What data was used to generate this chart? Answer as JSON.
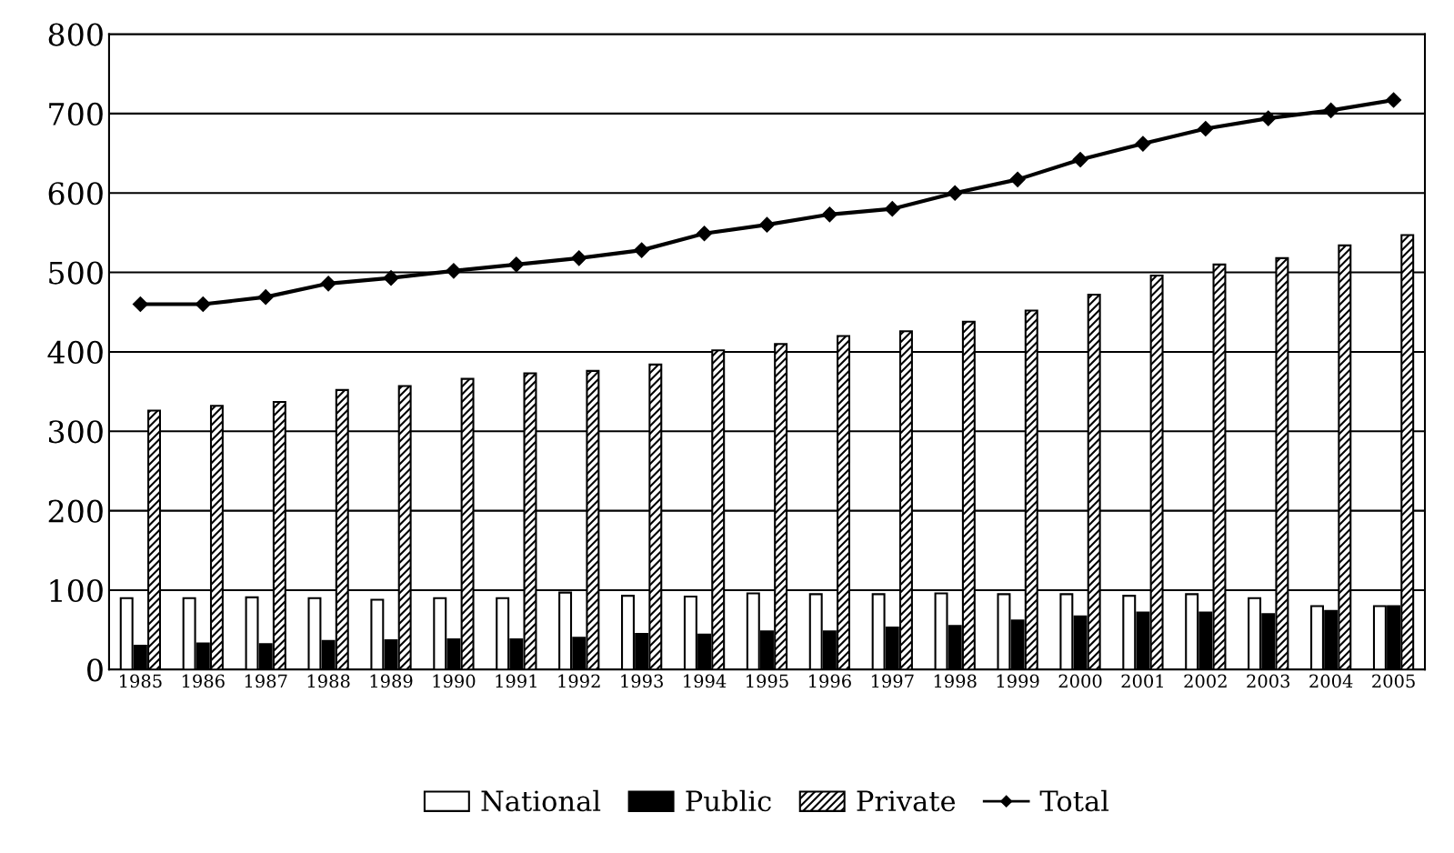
{
  "chart_data": {
    "type": "bar",
    "categories": [
      "1985",
      "1986",
      "1987",
      "1988",
      "1989",
      "1990",
      "1991",
      "1992",
      "1993",
      "1994",
      "1995",
      "1996",
      "1997",
      "1998",
      "1999",
      "2000",
      "2001",
      "2002",
      "2003",
      "2004",
      "2005"
    ],
    "series": [
      {
        "name": "National",
        "color": "#ffffff",
        "values": [
          90,
          90,
          91,
          90,
          88,
          90,
          90,
          97,
          93,
          92,
          96,
          95,
          95,
          96,
          95,
          95,
          93,
          95,
          90,
          80,
          80
        ]
      },
      {
        "name": "Public",
        "color": "#000000",
        "values": [
          30,
          33,
          32,
          36,
          37,
          38,
          38,
          40,
          45,
          44,
          48,
          48,
          53,
          55,
          62,
          67,
          72,
          72,
          70,
          74,
          80
        ]
      },
      {
        "name": "Private",
        "color": "#000000",
        "values": [
          326,
          332,
          337,
          352,
          357,
          366,
          373,
          376,
          384,
          402,
          410,
          420,
          426,
          438,
          452,
          472,
          496,
          510,
          518,
          534,
          547
        ]
      },
      {
        "name": "Total",
        "type": "line",
        "color": "#000000",
        "marker": "diamond",
        "values": [
          460,
          460,
          469,
          486,
          493,
          502,
          510,
          518,
          528,
          549,
          560,
          573,
          580,
          600,
          617,
          642,
          662,
          681,
          694,
          704,
          717
        ]
      }
    ],
    "ylim": [
      0,
      800
    ],
    "yticks": [
      0,
      100,
      200,
      300,
      400,
      500,
      600,
      700,
      800
    ],
    "grid": "y",
    "legend": "bottom"
  }
}
